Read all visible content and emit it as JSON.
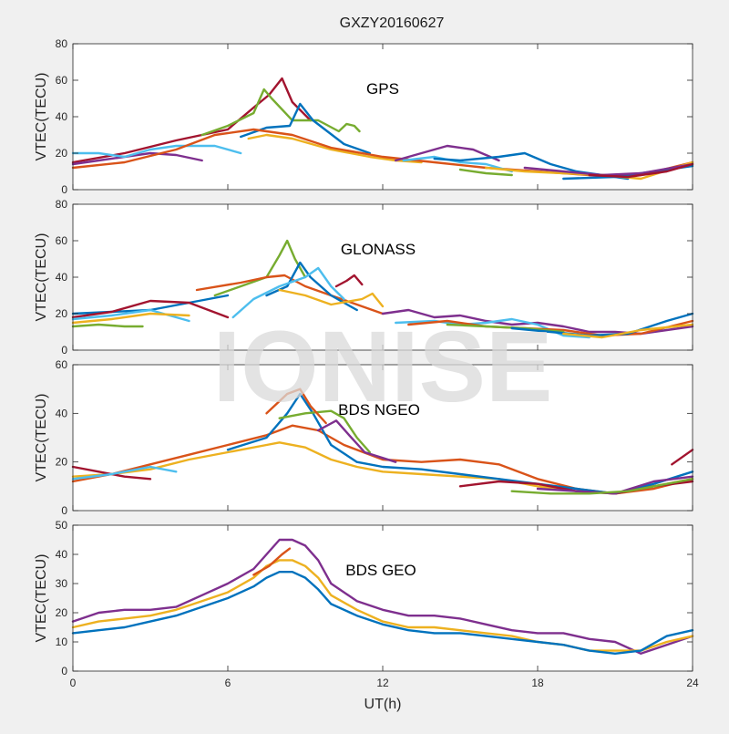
{
  "figure": {
    "title": "GXZY20160627",
    "watermark": "IONISE",
    "xlabel": "UT(h)",
    "background": "#f0f0f0",
    "axes_background": "#ffffff",
    "palette": [
      "#0072BD",
      "#D95319",
      "#EDB120",
      "#7E2F8E",
      "#77AC30",
      "#4DBEEE",
      "#A2142F"
    ]
  },
  "chart_data": [
    {
      "type": "line",
      "title": "GPS",
      "ylabel": "VTEC(TECU)",
      "xlim": [
        0,
        24
      ],
      "ylim": [
        0,
        80
      ],
      "xticks": [
        0,
        6,
        12,
        18,
        24
      ],
      "yticks": [
        0,
        20,
        40,
        60,
        80
      ],
      "grid": false,
      "series": [
        {
          "color": "#A2142F",
          "x": [
            0,
            2,
            4,
            6,
            7,
            7.6,
            8.1,
            8.5,
            9.2
          ],
          "y": [
            15,
            20,
            27,
            33,
            45,
            52,
            61,
            48,
            38
          ]
        },
        {
          "color": "#77AC30",
          "x": [
            5,
            6,
            7,
            7.4,
            7.7,
            8.5,
            9.5,
            10.3,
            10.6,
            10.9,
            11.1
          ],
          "y": [
            30,
            35,
            42,
            55,
            50,
            38,
            38,
            32,
            36,
            35,
            32
          ]
        },
        {
          "color": "#0072BD",
          "x": [
            6.5,
            7.5,
            8.4,
            8.8,
            9.3,
            10.5,
            11.5
          ],
          "y": [
            29,
            34,
            35,
            47,
            38,
            25,
            20
          ]
        },
        {
          "color": "#EDB120",
          "x": [
            6.8,
            7.5,
            8.5,
            10,
            11.5,
            12.5,
            13.5
          ],
          "y": [
            28,
            30,
            28,
            22,
            18,
            16,
            15
          ]
        },
        {
          "color": "#7E2F8E",
          "x": [
            0,
            1,
            2,
            3,
            4,
            5
          ],
          "y": [
            14,
            16,
            18,
            20,
            19,
            16
          ]
        },
        {
          "color": "#4DBEEE",
          "x": [
            0,
            1,
            2,
            3,
            4,
            5.5,
            6.5
          ],
          "y": [
            20,
            20,
            18,
            22,
            24,
            24,
            20
          ]
        },
        {
          "color": "#D95319",
          "x": [
            0,
            2,
            4,
            5.5,
            7,
            8.5,
            10,
            12,
            14,
            16,
            18,
            20,
            22,
            24
          ],
          "y": [
            12,
            15,
            22,
            30,
            33,
            30,
            23,
            18,
            15,
            12,
            10,
            8,
            8,
            15
          ]
        },
        {
          "color": "#7E2F8E",
          "x": [
            12.5,
            13.5,
            14.5,
            15.5,
            16.5
          ],
          "y": [
            16,
            20,
            24,
            22,
            16
          ]
        },
        {
          "color": "#4DBEEE",
          "x": [
            12.8,
            14,
            15,
            16,
            17
          ],
          "y": [
            16,
            18,
            15,
            14,
            10
          ]
        },
        {
          "color": "#0072BD",
          "x": [
            14,
            15,
            16.5,
            17.5,
            18.5,
            19.5,
            20.5,
            21.5
          ],
          "y": [
            17,
            16,
            18,
            20,
            14,
            10,
            8,
            6
          ]
        },
        {
          "color": "#EDB120",
          "x": [
            16,
            17.5,
            19,
            20.5,
            22,
            24
          ],
          "y": [
            12,
            10,
            9,
            8,
            6,
            15
          ]
        },
        {
          "color": "#0072BD",
          "x": [
            19,
            21,
            22.5,
            24
          ],
          "y": [
            6,
            7,
            10,
            13
          ]
        },
        {
          "color": "#7E2F8E",
          "x": [
            17.5,
            19,
            20.5,
            22,
            24
          ],
          "y": [
            12,
            10,
            8,
            9,
            14
          ]
        },
        {
          "color": "#A2142F",
          "x": [
            20,
            21.5,
            23,
            24
          ],
          "y": [
            8,
            7,
            10,
            14
          ]
        },
        {
          "color": "#77AC30",
          "x": [
            15,
            16,
            17
          ],
          "y": [
            11,
            9,
            8
          ]
        }
      ]
    },
    {
      "type": "line",
      "title": "GLONASS",
      "ylabel": "VTEC(TECU)",
      "xlim": [
        0,
        24
      ],
      "ylim": [
        0,
        80
      ],
      "xticks": [
        0,
        6,
        12,
        18,
        24
      ],
      "yticks": [
        0,
        20,
        40,
        60,
        80
      ],
      "grid": false,
      "series": [
        {
          "color": "#77AC30",
          "x": [
            5.5,
            6.5,
            7.5,
            8,
            8.3,
            8.6,
            9
          ],
          "y": [
            30,
            35,
            40,
            52,
            60,
            50,
            40
          ]
        },
        {
          "color": "#D95319",
          "x": [
            4.8,
            6.5,
            7.5,
            8.2,
            9,
            10,
            11,
            12
          ],
          "y": [
            33,
            37,
            40,
            41,
            35,
            30,
            25,
            20
          ]
        },
        {
          "color": "#0072BD",
          "x": [
            7.5,
            8.3,
            8.8,
            9.2,
            10,
            11
          ],
          "y": [
            30,
            35,
            48,
            40,
            30,
            22
          ]
        },
        {
          "color": "#4DBEEE",
          "x": [
            6.2,
            7,
            8,
            9,
            9.5,
            10,
            10.5
          ],
          "y": [
            18,
            28,
            35,
            40,
            45,
            35,
            28
          ]
        },
        {
          "color": "#A2142F",
          "x": [
            10.2,
            10.6,
            10.9,
            11.2
          ],
          "y": [
            35,
            38,
            41,
            36
          ]
        },
        {
          "color": "#EDB120",
          "x": [
            8,
            9,
            10,
            11.2,
            11.6,
            12
          ],
          "y": [
            33,
            30,
            25,
            28,
            31,
            24
          ]
        },
        {
          "color": "#77AC30",
          "x": [
            0,
            1,
            2,
            2.7
          ],
          "y": [
            13,
            14,
            13,
            13
          ]
        },
        {
          "color": "#0072BD",
          "x": [
            0,
            1.5,
            3,
            4.5,
            6
          ],
          "y": [
            20,
            21,
            22,
            26,
            30
          ]
        },
        {
          "color": "#A2142F",
          "x": [
            0,
            1.5,
            3,
            4.5,
            6
          ],
          "y": [
            18,
            21,
            27,
            26,
            18
          ]
        },
        {
          "color": "#4DBEEE",
          "x": [
            0,
            1.5,
            3,
            4.5
          ],
          "y": [
            17,
            19,
            22,
            16
          ]
        },
        {
          "color": "#EDB120",
          "x": [
            0,
            1.5,
            3,
            4.5
          ],
          "y": [
            15,
            17,
            20,
            19
          ]
        },
        {
          "color": "#7E2F8E",
          "x": [
            12,
            13,
            14,
            15,
            16,
            17,
            18,
            19,
            20,
            21,
            22,
            23,
            24
          ],
          "y": [
            20,
            22,
            18,
            19,
            16,
            14,
            15,
            13,
            10,
            10,
            9,
            11,
            13
          ]
        },
        {
          "color": "#4DBEEE",
          "x": [
            12.5,
            14,
            15,
            16,
            17,
            18,
            19,
            20
          ],
          "y": [
            15,
            16,
            14,
            15,
            17,
            14,
            8,
            7
          ]
        },
        {
          "color": "#D95319",
          "x": [
            13,
            14.5,
            16,
            17.5,
            19,
            20.5,
            22,
            24
          ],
          "y": [
            14,
            16,
            13,
            12,
            11,
            8,
            9,
            16
          ]
        },
        {
          "color": "#77AC30",
          "x": [
            14.5,
            16,
            17.5,
            19
          ],
          "y": [
            14,
            13,
            12,
            10
          ]
        },
        {
          "color": "#0072BD",
          "x": [
            17,
            18.5,
            20,
            21.5,
            23,
            24
          ],
          "y": [
            12,
            10,
            8,
            9,
            16,
            20
          ]
        },
        {
          "color": "#EDB120",
          "x": [
            19,
            20.5,
            22,
            24
          ],
          "y": [
            9,
            7,
            11,
            14
          ]
        }
      ]
    },
    {
      "type": "line",
      "title": "BDS NGEO",
      "ylabel": "VTEC(TECU)",
      "xlim": [
        0,
        24
      ],
      "ylim": [
        0,
        60
      ],
      "xticks": [
        0,
        6,
        12,
        18,
        24
      ],
      "yticks": [
        0,
        20,
        40,
        60
      ],
      "grid": false,
      "series": [
        {
          "color": "#D95319",
          "x": [
            0,
            1.5,
            3,
            4.5,
            6,
            7.5,
            8.5,
            9.5,
            10.5,
            12,
            13.5,
            15,
            16.5,
            18,
            19.5,
            21,
            22.5,
            24
          ],
          "y": [
            12,
            15,
            19,
            23,
            27,
            31,
            35,
            33,
            27,
            21,
            20,
            21,
            19,
            13,
            9,
            7,
            9,
            13
          ]
        },
        {
          "color": "#EDB120",
          "x": [
            0,
            1.5,
            3,
            4.5,
            6,
            7.5,
            8,
            9,
            10,
            11,
            12,
            13.5,
            15,
            16.5,
            18,
            19.5,
            21,
            22.5,
            24
          ],
          "y": [
            14,
            15,
            17,
            21,
            24,
            27,
            28,
            26,
            21,
            18,
            16,
            15,
            14,
            13,
            10,
            8,
            7,
            10,
            13
          ]
        },
        {
          "color": "#0072BD",
          "x": [
            6,
            7.5,
            8.3,
            8.8,
            9.3,
            10,
            11,
            12,
            13.5,
            15,
            16.5,
            18,
            19.5,
            21,
            22.5,
            24
          ],
          "y": [
            25,
            30,
            40,
            48,
            40,
            27,
            20,
            18,
            17,
            15,
            13,
            11,
            9,
            7,
            11,
            16
          ]
        },
        {
          "color": "#77AC30",
          "x": [
            8,
            9,
            10,
            10.5,
            11,
            11.5
          ],
          "y": [
            38,
            40,
            41,
            38,
            30,
            24
          ]
        },
        {
          "color": "#7E2F8E",
          "x": [
            9.5,
            10.2,
            10.7,
            11.3,
            12.5
          ],
          "y": [
            33,
            37,
            31,
            24,
            20
          ]
        },
        {
          "color": "#D95319",
          "x": [
            7.5,
            8.3,
            8.8,
            9.2,
            9.8
          ],
          "y": [
            40,
            48,
            50,
            43,
            36
          ]
        },
        {
          "color": "#A2142F",
          "x": [
            0,
            1,
            2,
            3
          ],
          "y": [
            18,
            16,
            14,
            13
          ]
        },
        {
          "color": "#4DBEEE",
          "x": [
            0,
            1.5,
            3,
            4
          ],
          "y": [
            13,
            15,
            18,
            16
          ]
        },
        {
          "color": "#A2142F",
          "x": [
            15,
            16.5,
            18,
            19.5,
            21,
            22.5,
            24
          ],
          "y": [
            10,
            12,
            11,
            8,
            7,
            10,
            12
          ]
        },
        {
          "color": "#7E2F8E",
          "x": [
            18,
            19.5,
            21,
            22.5,
            24
          ],
          "y": [
            9,
            8,
            7,
            12,
            14
          ]
        },
        {
          "color": "#77AC30",
          "x": [
            17,
            18.5,
            20,
            21.5,
            23,
            24
          ],
          "y": [
            8,
            7,
            7,
            8,
            11,
            13
          ]
        },
        {
          "color": "#A2142F",
          "x": [
            23.2,
            24
          ],
          "y": [
            19,
            25
          ]
        }
      ]
    },
    {
      "type": "line",
      "title": "BDS GEO",
      "ylabel": "VTEC(TECU)",
      "xlim": [
        0,
        24
      ],
      "ylim": [
        0,
        50
      ],
      "xticks": [
        0,
        6,
        12,
        18,
        24
      ],
      "yticks": [
        0,
        10,
        20,
        30,
        40,
        50
      ],
      "grid": false,
      "series": [
        {
          "color": "#7E2F8E",
          "x": [
            0,
            1,
            2,
            3,
            4,
            5,
            6,
            7,
            7.5,
            8,
            8.5,
            9,
            9.5,
            10,
            11,
            12,
            13,
            14,
            15,
            16,
            17,
            18,
            19,
            20,
            21,
            22,
            23,
            24
          ],
          "y": [
            17,
            20,
            21,
            21,
            22,
            26,
            30,
            35,
            40,
            45,
            45,
            43,
            38,
            30,
            24,
            21,
            19,
            19,
            18,
            16,
            14,
            13,
            13,
            11,
            10,
            6,
            9,
            12
          ]
        },
        {
          "color": "#EDB120",
          "x": [
            0,
            1,
            2,
            3,
            4,
            5,
            6,
            7,
            7.5,
            8,
            8.5,
            9,
            9.5,
            10,
            11,
            12,
            13,
            14,
            15,
            16,
            17,
            18,
            19,
            20,
            21,
            22,
            23,
            24
          ],
          "y": [
            15,
            17,
            18,
            19,
            21,
            24,
            27,
            32,
            36,
            38,
            38,
            36,
            32,
            26,
            21,
            17,
            15,
            15,
            14,
            13,
            12,
            10,
            9,
            7,
            7,
            7,
            10,
            12
          ]
        },
        {
          "color": "#0072BD",
          "x": [
            0,
            1,
            2,
            3,
            4,
            5,
            6,
            7,
            7.5,
            8,
            8.5,
            9,
            9.5,
            10,
            11,
            12,
            13,
            14,
            15,
            16,
            17,
            18,
            19,
            20,
            21,
            22,
            23,
            24
          ],
          "y": [
            13,
            14,
            15,
            17,
            19,
            22,
            25,
            29,
            32,
            34,
            34,
            32,
            28,
            23,
            19,
            16,
            14,
            13,
            13,
            12,
            11,
            10,
            9,
            7,
            6,
            7,
            12,
            14
          ]
        },
        {
          "color": "#D95319",
          "x": [
            7,
            7.6,
            8.1,
            8.4
          ],
          "y": [
            33,
            36,
            40,
            42
          ]
        }
      ]
    }
  ]
}
